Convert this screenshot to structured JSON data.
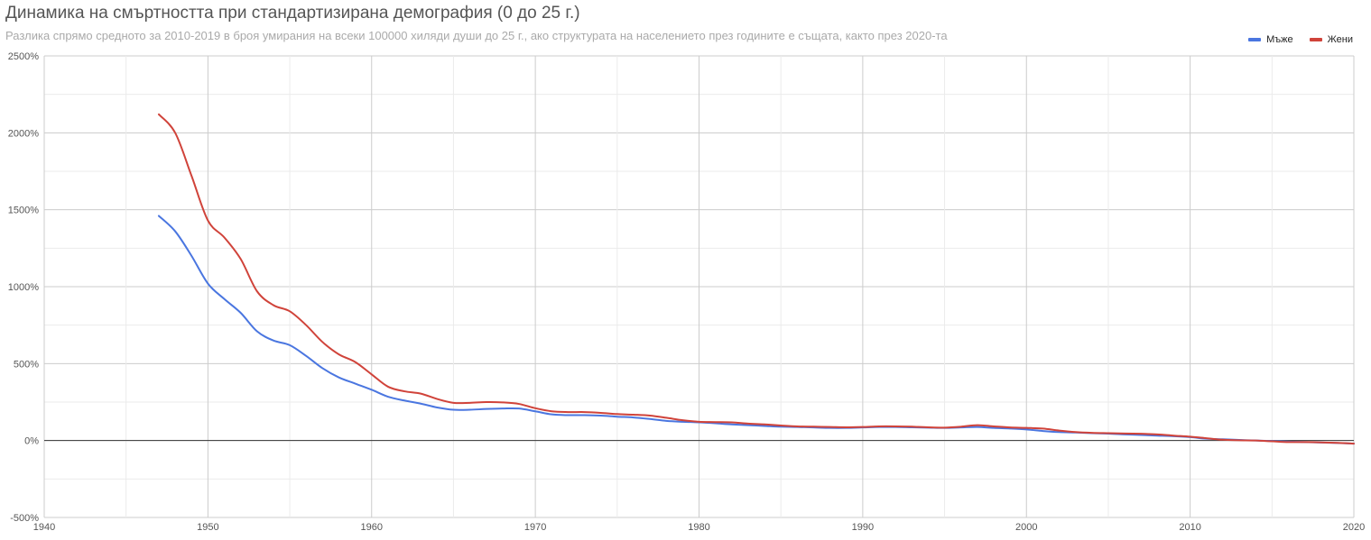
{
  "chart_data": {
    "type": "line",
    "title": "Динамика на смъртността при стандартизирана демография (0 до 25 г.)",
    "subtitle": "Разлика спрямо средното за 2010-2019 в броя умирания на всеки 100000 хиляди души до 25 г., ако структурата на населението през годините е същата, както през 2020-та",
    "xlabel": "",
    "ylabel": "",
    "xlim": [
      1940,
      2020
    ],
    "ylim": [
      -500,
      2500
    ],
    "x_ticks": [
      1940,
      1950,
      1960,
      1970,
      1980,
      1990,
      2000,
      2010,
      2020
    ],
    "y_ticks": [
      "-500%",
      "0%",
      "500%",
      "1000%",
      "1500%",
      "2000%",
      "2500%"
    ],
    "y_tick_values": [
      -500,
      0,
      500,
      1000,
      1500,
      2000,
      2500
    ],
    "grid": true,
    "legend_position": "top-right",
    "x": [
      1947,
      1948,
      1949,
      1950,
      1951,
      1952,
      1953,
      1954,
      1955,
      1956,
      1957,
      1958,
      1959,
      1960,
      1961,
      1962,
      1963,
      1964,
      1965,
      1966,
      1967,
      1968,
      1969,
      1970,
      1971,
      1972,
      1973,
      1974,
      1975,
      1976,
      1977,
      1978,
      1979,
      1980,
      1981,
      1982,
      1983,
      1984,
      1985,
      1986,
      1987,
      1988,
      1989,
      1990,
      1991,
      1992,
      1993,
      1994,
      1995,
      1996,
      1997,
      1998,
      1999,
      2000,
      2001,
      2002,
      2003,
      2004,
      2005,
      2006,
      2007,
      2008,
      2009,
      2010,
      2011,
      2012,
      2013,
      2014,
      2015,
      2016,
      2017,
      2018,
      2019,
      2020
    ],
    "series": [
      {
        "name": "Мъже",
        "color": "#4a76e0",
        "values": [
          1460,
          1360,
          1200,
          1020,
          920,
          830,
          710,
          650,
          620,
          550,
          470,
          410,
          370,
          330,
          285,
          260,
          240,
          215,
          200,
          200,
          205,
          208,
          208,
          190,
          170,
          165,
          165,
          162,
          155,
          150,
          140,
          128,
          122,
          118,
          112,
          105,
          100,
          95,
          90,
          88,
          85,
          82,
          82,
          85,
          88,
          88,
          86,
          84,
          82,
          85,
          88,
          82,
          78,
          72,
          62,
          55,
          52,
          48,
          45,
          40,
          36,
          32,
          28,
          22,
          12,
          8,
          4,
          0,
          -3,
          -7,
          -10,
          -13,
          -16,
          -20
        ]
      },
      {
        "name": "Жени",
        "color": "#d0433a",
        "values": [
          2120,
          2000,
          1720,
          1430,
          1320,
          1180,
          970,
          880,
          840,
          750,
          640,
          560,
          510,
          430,
          350,
          320,
          305,
          270,
          245,
          245,
          250,
          248,
          238,
          210,
          190,
          185,
          185,
          180,
          172,
          168,
          162,
          148,
          132,
          122,
          120,
          118,
          110,
          105,
          98,
          92,
          90,
          88,
          86,
          88,
          92,
          92,
          90,
          86,
          84,
          90,
          100,
          92,
          85,
          82,
          78,
          65,
          55,
          50,
          48,
          46,
          44,
          40,
          32,
          25,
          15,
          5,
          2,
          0,
          -5,
          -10,
          -10,
          -12,
          -15,
          -20
        ]
      }
    ]
  }
}
